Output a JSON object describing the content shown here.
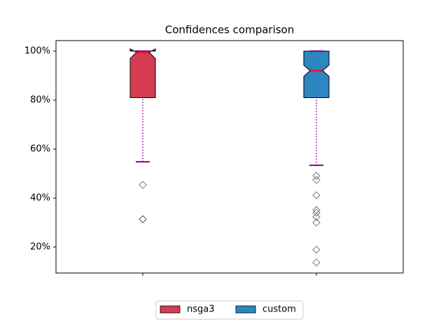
{
  "chart_data": {
    "type": "boxplot",
    "title": "Confidences comparison",
    "ylim": [
      9.4,
      104.3
    ],
    "yticks": [
      {
        "value": 20,
        "label": "20%"
      },
      {
        "value": 40,
        "label": "40%"
      },
      {
        "value": 60,
        "label": "60%"
      },
      {
        "value": 80,
        "label": "80%"
      },
      {
        "value": 100,
        "label": "100%"
      }
    ],
    "notched": true,
    "median_color": "#e8133a",
    "whisker_color": "#8b008b",
    "outlier_color": "#777777",
    "legend_position": "below",
    "series": [
      {
        "name": "nsga3",
        "color": "#d43d51",
        "q1": 81,
        "notch_low": 97,
        "median": 99.5,
        "notch_high": 100.9,
        "q3": 100,
        "whisker_low": 54.8,
        "whisker_high": 100,
        "outliers": [
          45.4,
          31.4,
          31.3
        ]
      },
      {
        "name": "custom",
        "color": "#2e86c1",
        "q1": 81,
        "notch_low": 89.7,
        "median": 92,
        "notch_high": 94.3,
        "q3": 100,
        "whisker_low": 53.4,
        "whisker_high": 100,
        "outliers": [
          49.1,
          47.4,
          41.1,
          35.1,
          34.0,
          32.3,
          30.0,
          18.9,
          13.7
        ]
      }
    ]
  }
}
